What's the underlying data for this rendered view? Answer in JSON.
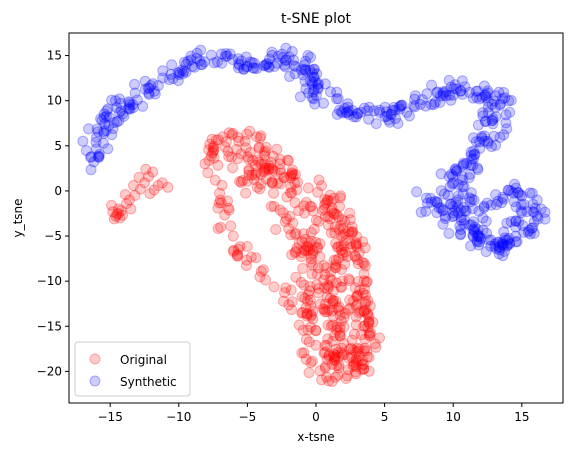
{
  "chart_data": {
    "type": "scatter",
    "title": "t-SNE plot",
    "xlabel": "x-tsne",
    "ylabel": "y_tsne",
    "xlim": [
      -18,
      18
    ],
    "ylim": [
      -23.5,
      17.5
    ],
    "xticks": [
      -15,
      -10,
      -5,
      0,
      5,
      10,
      15
    ],
    "yticks": [
      -20,
      -15,
      -10,
      -5,
      0,
      5,
      10,
      15
    ],
    "grid": false,
    "legend_position": "lower-left",
    "series": [
      {
        "name": "Original",
        "color": "#ff0000",
        "alpha": 0.2,
        "spine": [
          [
            -7.5,
            5.5
          ],
          [
            -6,
            6.5
          ],
          [
            -4,
            6
          ],
          [
            -3.5,
            3
          ],
          [
            -1.5,
            1
          ],
          [
            0,
            0
          ],
          [
            1,
            -2
          ],
          [
            2,
            -4
          ],
          [
            3,
            -6
          ],
          [
            3.5,
            -9
          ],
          [
            3.5,
            -13
          ],
          [
            4,
            -17
          ],
          [
            3.5,
            -20
          ],
          [
            1,
            -21
          ],
          [
            0,
            -20
          ],
          [
            -0.5,
            -17
          ],
          [
            -1,
            -14
          ],
          [
            -2.5,
            -11
          ],
          [
            -4,
            -9
          ],
          [
            -5.5,
            -7
          ],
          [
            -6.5,
            -4
          ],
          [
            -7,
            -1
          ],
          [
            -7.5,
            2
          ],
          [
            -7.5,
            5.5
          ]
        ],
        "fill_band": {
          "center": [
            [
              -6,
              5.5
            ],
            [
              -4,
              3
            ],
            [
              -2,
              0
            ],
            [
              0,
              -3
            ],
            [
              0.8,
              -6
            ],
            [
              1.2,
              -9
            ],
            [
              1.5,
              -12
            ],
            [
              2,
              -15
            ],
            [
              2,
              -18
            ],
            [
              2,
              -20
            ]
          ],
          "half_width": [
            1.8,
            2.6,
            3.0,
            3.0,
            2.8,
            2.6,
            2.5,
            2.2,
            1.8,
            1.4
          ],
          "count": 360
        },
        "small_cluster": [
          [
            -14.4,
            -2.5
          ],
          [
            -14.6,
            -2.8
          ],
          [
            -14.3,
            -3.0
          ],
          [
            -14.8,
            -2.3
          ],
          [
            -14.5,
            -2.6
          ],
          [
            -14.2,
            -2.2
          ],
          [
            -14.7,
            -3.1
          ],
          [
            -14.4,
            -2.0
          ],
          [
            -14.9,
            -1.6
          ],
          [
            -14.1,
            -2.7
          ],
          [
            -13.6,
            -1.0
          ],
          [
            -13.2,
            -0.5
          ],
          [
            -12.8,
            0.2
          ],
          [
            -12.5,
            0.9
          ],
          [
            -12.2,
            1.6
          ],
          [
            -11.9,
            2.1
          ],
          [
            -12.4,
            2.4
          ],
          [
            -12.9,
            1.5
          ],
          [
            -13.3,
            0.6
          ],
          [
            -13.9,
            -0.4
          ],
          [
            -11.5,
            0.6
          ],
          [
            -10.8,
            0.4
          ],
          [
            -11.2,
            0.9
          ],
          [
            -11.8,
            0.1
          ],
          [
            -12.1,
            -0.3
          ],
          [
            -13.5,
            -2.0
          ],
          [
            -13.8,
            -1.4
          ]
        ]
      },
      {
        "name": "Synthetic",
        "color": "#0000ff",
        "alpha": 0.2,
        "spine": [
          [
            -16.2,
            3.3
          ],
          [
            -15.7,
            5.5
          ],
          [
            -15,
            8
          ],
          [
            -14,
            10
          ],
          [
            -13,
            9.5
          ],
          [
            -12,
            12
          ],
          [
            -10,
            13.5
          ],
          [
            -8,
            14.5
          ],
          [
            -6,
            14
          ],
          [
            -4,
            13.5
          ],
          [
            -2.5,
            15
          ],
          [
            -1,
            14
          ],
          [
            0,
            11
          ],
          [
            1,
            10
          ],
          [
            2,
            9
          ],
          [
            4,
            8
          ],
          [
            6,
            9
          ],
          [
            8,
            10
          ],
          [
            9.5,
            10.5
          ],
          [
            10.5,
            11.5
          ],
          [
            12,
            10.5
          ],
          [
            13.5,
            10.5
          ],
          [
            12.5,
            7
          ],
          [
            12,
            4
          ],
          [
            11,
            3
          ],
          [
            10,
            1
          ],
          [
            11,
            -1
          ],
          [
            12.5,
            -2
          ],
          [
            14,
            0
          ],
          [
            15.5,
            -1
          ],
          [
            15.8,
            -3
          ],
          [
            14,
            -5.5
          ],
          [
            12.5,
            -6.5
          ],
          [
            11,
            -4
          ],
          [
            10,
            -2
          ],
          [
            8.5,
            -1.5
          ],
          [
            7.8,
            -0.5
          ]
        ],
        "point_count": 520
      }
    ]
  }
}
